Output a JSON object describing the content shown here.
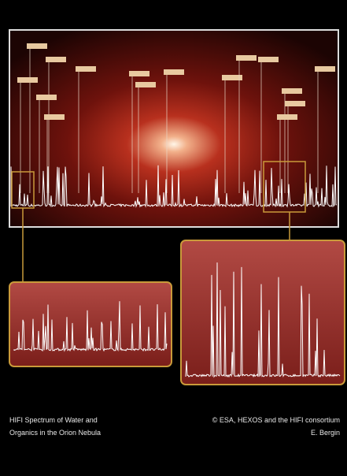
{
  "caption": {
    "title_lines": [
      "HIFI Spectrum of Water and",
      "Organics in the Orion Nebula"
    ],
    "credit_lines": [
      "© ESA, HEXOS and the HIFI consortium",
      "E. Bergin"
    ]
  }
}
